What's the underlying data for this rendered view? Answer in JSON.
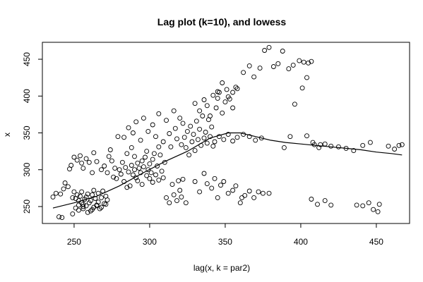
{
  "chart_data": {
    "type": "scatter",
    "title": "Lag plot (k=10), and lowess",
    "xlabel": "lag(x, k = par2)",
    "ylabel": "x",
    "xlim": [
      229,
      472
    ],
    "ylim": [
      227,
      473
    ],
    "xticks": [
      250,
      300,
      350,
      400,
      450
    ],
    "yticks": [
      250,
      300,
      350,
      400,
      450
    ],
    "grid": false,
    "legend": "none",
    "points": [
      [
        236,
        263
      ],
      [
        238,
        268
      ],
      [
        241,
        267
      ],
      [
        243,
        274
      ],
      [
        244,
        282
      ],
      [
        246,
        277
      ],
      [
        247,
        301
      ],
      [
        248,
        306
      ],
      [
        249,
        262
      ],
      [
        250,
        270
      ],
      [
        251,
        248
      ],
      [
        251,
        261
      ],
      [
        252,
        266
      ],
      [
        253,
        252
      ],
      [
        253,
        258
      ],
      [
        254,
        264
      ],
      [
        255,
        270
      ],
      [
        255,
        255
      ],
      [
        256,
        247
      ],
      [
        256,
        253
      ],
      [
        257,
        260
      ],
      [
        258,
        251
      ],
      [
        258,
        263
      ],
      [
        259,
        267
      ],
      [
        260,
        255
      ],
      [
        261,
        244
      ],
      [
        261,
        258
      ],
      [
        262,
        266
      ],
      [
        263,
        249
      ],
      [
        263,
        272
      ],
      [
        264,
        261
      ],
      [
        265,
        252
      ],
      [
        266,
        268
      ],
      [
        266,
        256
      ],
      [
        267,
        247
      ],
      [
        268,
        262
      ],
      [
        269,
        271
      ],
      [
        270,
        254
      ],
      [
        271,
        264
      ],
      [
        272,
        259
      ],
      [
        250,
        317
      ],
      [
        252,
        313
      ],
      [
        254,
        319
      ],
      [
        255,
        309
      ],
      [
        256,
        302
      ],
      [
        258,
        315
      ],
      [
        260,
        310
      ],
      [
        262,
        296
      ],
      [
        263,
        323
      ],
      [
        265,
        311
      ],
      [
        240,
        236
      ],
      [
        242,
        235
      ],
      [
        249,
        240
      ],
      [
        253,
        245
      ],
      [
        256,
        250
      ],
      [
        259,
        242
      ],
      [
        262,
        246
      ],
      [
        265,
        251
      ],
      [
        268,
        249
      ],
      [
        271,
        253
      ],
      [
        268,
        300
      ],
      [
        270,
        305
      ],
      [
        272,
        296
      ],
      [
        273,
        318
      ],
      [
        274,
        327
      ],
      [
        275,
        312
      ],
      [
        276,
        290
      ],
      [
        277,
        302
      ],
      [
        278,
        288
      ],
      [
        279,
        345
      ],
      [
        280,
        300
      ],
      [
        281,
        294
      ],
      [
        282,
        310
      ],
      [
        283,
        284
      ],
      [
        284,
        303
      ],
      [
        285,
        276
      ],
      [
        285,
        322
      ],
      [
        286,
        297
      ],
      [
        287,
        278
      ],
      [
        288,
        306
      ],
      [
        288,
        330
      ],
      [
        289,
        293
      ],
      [
        290,
        300
      ],
      [
        290,
        318
      ],
      [
        291,
        289
      ],
      [
        292,
        309
      ],
      [
        292,
        285
      ],
      [
        293,
        302
      ],
      [
        294,
        296
      ],
      [
        295,
        312
      ],
      [
        295,
        280
      ],
      [
        296,
        304
      ],
      [
        297,
        317
      ],
      [
        298,
        292
      ],
      [
        298,
        325
      ],
      [
        299,
        300
      ],
      [
        300,
        288
      ],
      [
        300,
        308
      ],
      [
        301,
        296
      ],
      [
        302,
        314
      ],
      [
        302,
        283
      ],
      [
        303,
        322
      ],
      [
        304,
        293
      ],
      [
        305,
        305
      ],
      [
        306,
        331
      ],
      [
        306,
        286
      ],
      [
        307,
        320
      ],
      [
        308,
        298
      ],
      [
        309,
        289
      ],
      [
        310,
        310
      ],
      [
        283,
        344
      ],
      [
        286,
        357
      ],
      [
        289,
        350
      ],
      [
        291,
        365
      ],
      [
        294,
        340
      ],
      [
        296,
        370
      ],
      [
        299,
        352
      ],
      [
        302,
        361
      ],
      [
        304,
        345
      ],
      [
        306,
        376
      ],
      [
        309,
        338
      ],
      [
        311,
        367
      ],
      [
        313,
        349
      ],
      [
        314,
        331
      ],
      [
        316,
        380
      ],
      [
        317,
        356
      ],
      [
        318,
        342
      ],
      [
        320,
        370
      ],
      [
        321,
        334
      ],
      [
        322,
        363
      ],
      [
        311,
        262
      ],
      [
        313,
        255
      ],
      [
        315,
        280
      ],
      [
        316,
        266
      ],
      [
        318,
        258
      ],
      [
        319,
        285
      ],
      [
        320,
        272
      ],
      [
        321,
        263
      ],
      [
        322,
        287
      ],
      [
        324,
        255
      ],
      [
        323,
        344
      ],
      [
        324,
        330
      ],
      [
        325,
        352
      ],
      [
        326,
        320
      ],
      [
        327,
        359
      ],
      [
        328,
        338
      ],
      [
        329,
        348
      ],
      [
        330,
        326
      ],
      [
        331,
        366
      ],
      [
        332,
        341
      ],
      [
        333,
        355
      ],
      [
        334,
        333
      ],
      [
        335,
        373
      ],
      [
        336,
        343
      ],
      [
        337,
        351
      ],
      [
        338,
        336
      ],
      [
        339,
        368
      ],
      [
        340,
        345
      ],
      [
        341,
        358
      ],
      [
        342,
        332
      ],
      [
        330,
        390
      ],
      [
        333,
        380
      ],
      [
        336,
        395
      ],
      [
        338,
        387
      ],
      [
        340,
        373
      ],
      [
        342,
        401
      ],
      [
        344,
        384
      ],
      [
        345,
        397
      ],
      [
        346,
        405
      ],
      [
        348,
        377
      ],
      [
        350,
        392
      ],
      [
        351,
        409
      ],
      [
        353,
        396
      ],
      [
        355,
        405
      ],
      [
        357,
        412
      ],
      [
        345,
        406
      ],
      [
        348,
        418
      ],
      [
        352,
        399
      ],
      [
        355,
        384
      ],
      [
        358,
        410
      ],
      [
        330,
        284
      ],
      [
        333,
        270
      ],
      [
        336,
        295
      ],
      [
        338,
        281
      ],
      [
        341,
        275
      ],
      [
        343,
        288
      ],
      [
        345,
        262
      ],
      [
        347,
        279
      ],
      [
        349,
        284
      ],
      [
        352,
        268
      ],
      [
        355,
        272
      ],
      [
        357,
        278
      ],
      [
        360,
        255
      ],
      [
        363,
        265
      ],
      [
        366,
        271
      ],
      [
        369,
        262
      ],
      [
        372,
        270
      ],
      [
        375,
        268
      ],
      [
        379,
        268
      ],
      [
        361,
        262
      ],
      [
        343,
        338
      ],
      [
        346,
        345
      ],
      [
        349,
        341
      ],
      [
        352,
        348
      ],
      [
        355,
        339
      ],
      [
        358,
        344
      ],
      [
        362,
        348
      ],
      [
        366,
        345
      ],
      [
        370,
        340
      ],
      [
        374,
        343
      ],
      [
        362,
        432
      ],
      [
        366,
        441
      ],
      [
        369,
        426
      ],
      [
        373,
        438
      ],
      [
        376,
        462
      ],
      [
        379,
        466
      ],
      [
        382,
        440
      ],
      [
        385,
        444
      ],
      [
        388,
        461
      ],
      [
        392,
        437
      ],
      [
        395,
        442
      ],
      [
        399,
        448
      ],
      [
        402,
        446
      ],
      [
        405,
        445
      ],
      [
        407,
        447
      ],
      [
        396,
        389
      ],
      [
        401,
        411
      ],
      [
        404,
        425
      ],
      [
        389,
        330
      ],
      [
        393,
        345
      ],
      [
        404,
        346
      ],
      [
        408,
        337
      ],
      [
        412,
        330
      ],
      [
        416,
        335
      ],
      [
        420,
        332
      ],
      [
        425,
        331
      ],
      [
        430,
        329
      ],
      [
        435,
        326
      ],
      [
        441,
        333
      ],
      [
        446,
        337
      ],
      [
        407,
        260
      ],
      [
        411,
        253
      ],
      [
        416,
        258
      ],
      [
        420,
        252
      ],
      [
        437,
        252
      ],
      [
        441,
        251
      ],
      [
        445,
        255
      ],
      [
        448,
        246
      ],
      [
        451,
        243
      ],
      [
        452,
        253
      ],
      [
        458,
        332
      ],
      [
        462,
        328
      ],
      [
        465,
        333
      ],
      [
        467,
        334
      ],
      [
        409,
        334
      ],
      [
        413,
        334
      ]
    ],
    "lowess": [
      [
        236,
        248
      ],
      [
        250,
        255
      ],
      [
        265,
        264
      ],
      [
        280,
        278
      ],
      [
        295,
        295
      ],
      [
        310,
        311
      ],
      [
        325,
        325
      ],
      [
        340,
        343
      ],
      [
        352,
        350
      ],
      [
        360,
        350
      ],
      [
        370,
        345
      ],
      [
        380,
        340
      ],
      [
        390,
        337
      ],
      [
        400,
        335
      ],
      [
        410,
        333
      ],
      [
        420,
        331
      ],
      [
        430,
        329
      ],
      [
        440,
        327
      ],
      [
        450,
        324
      ],
      [
        460,
        322
      ],
      [
        467,
        320
      ]
    ]
  }
}
